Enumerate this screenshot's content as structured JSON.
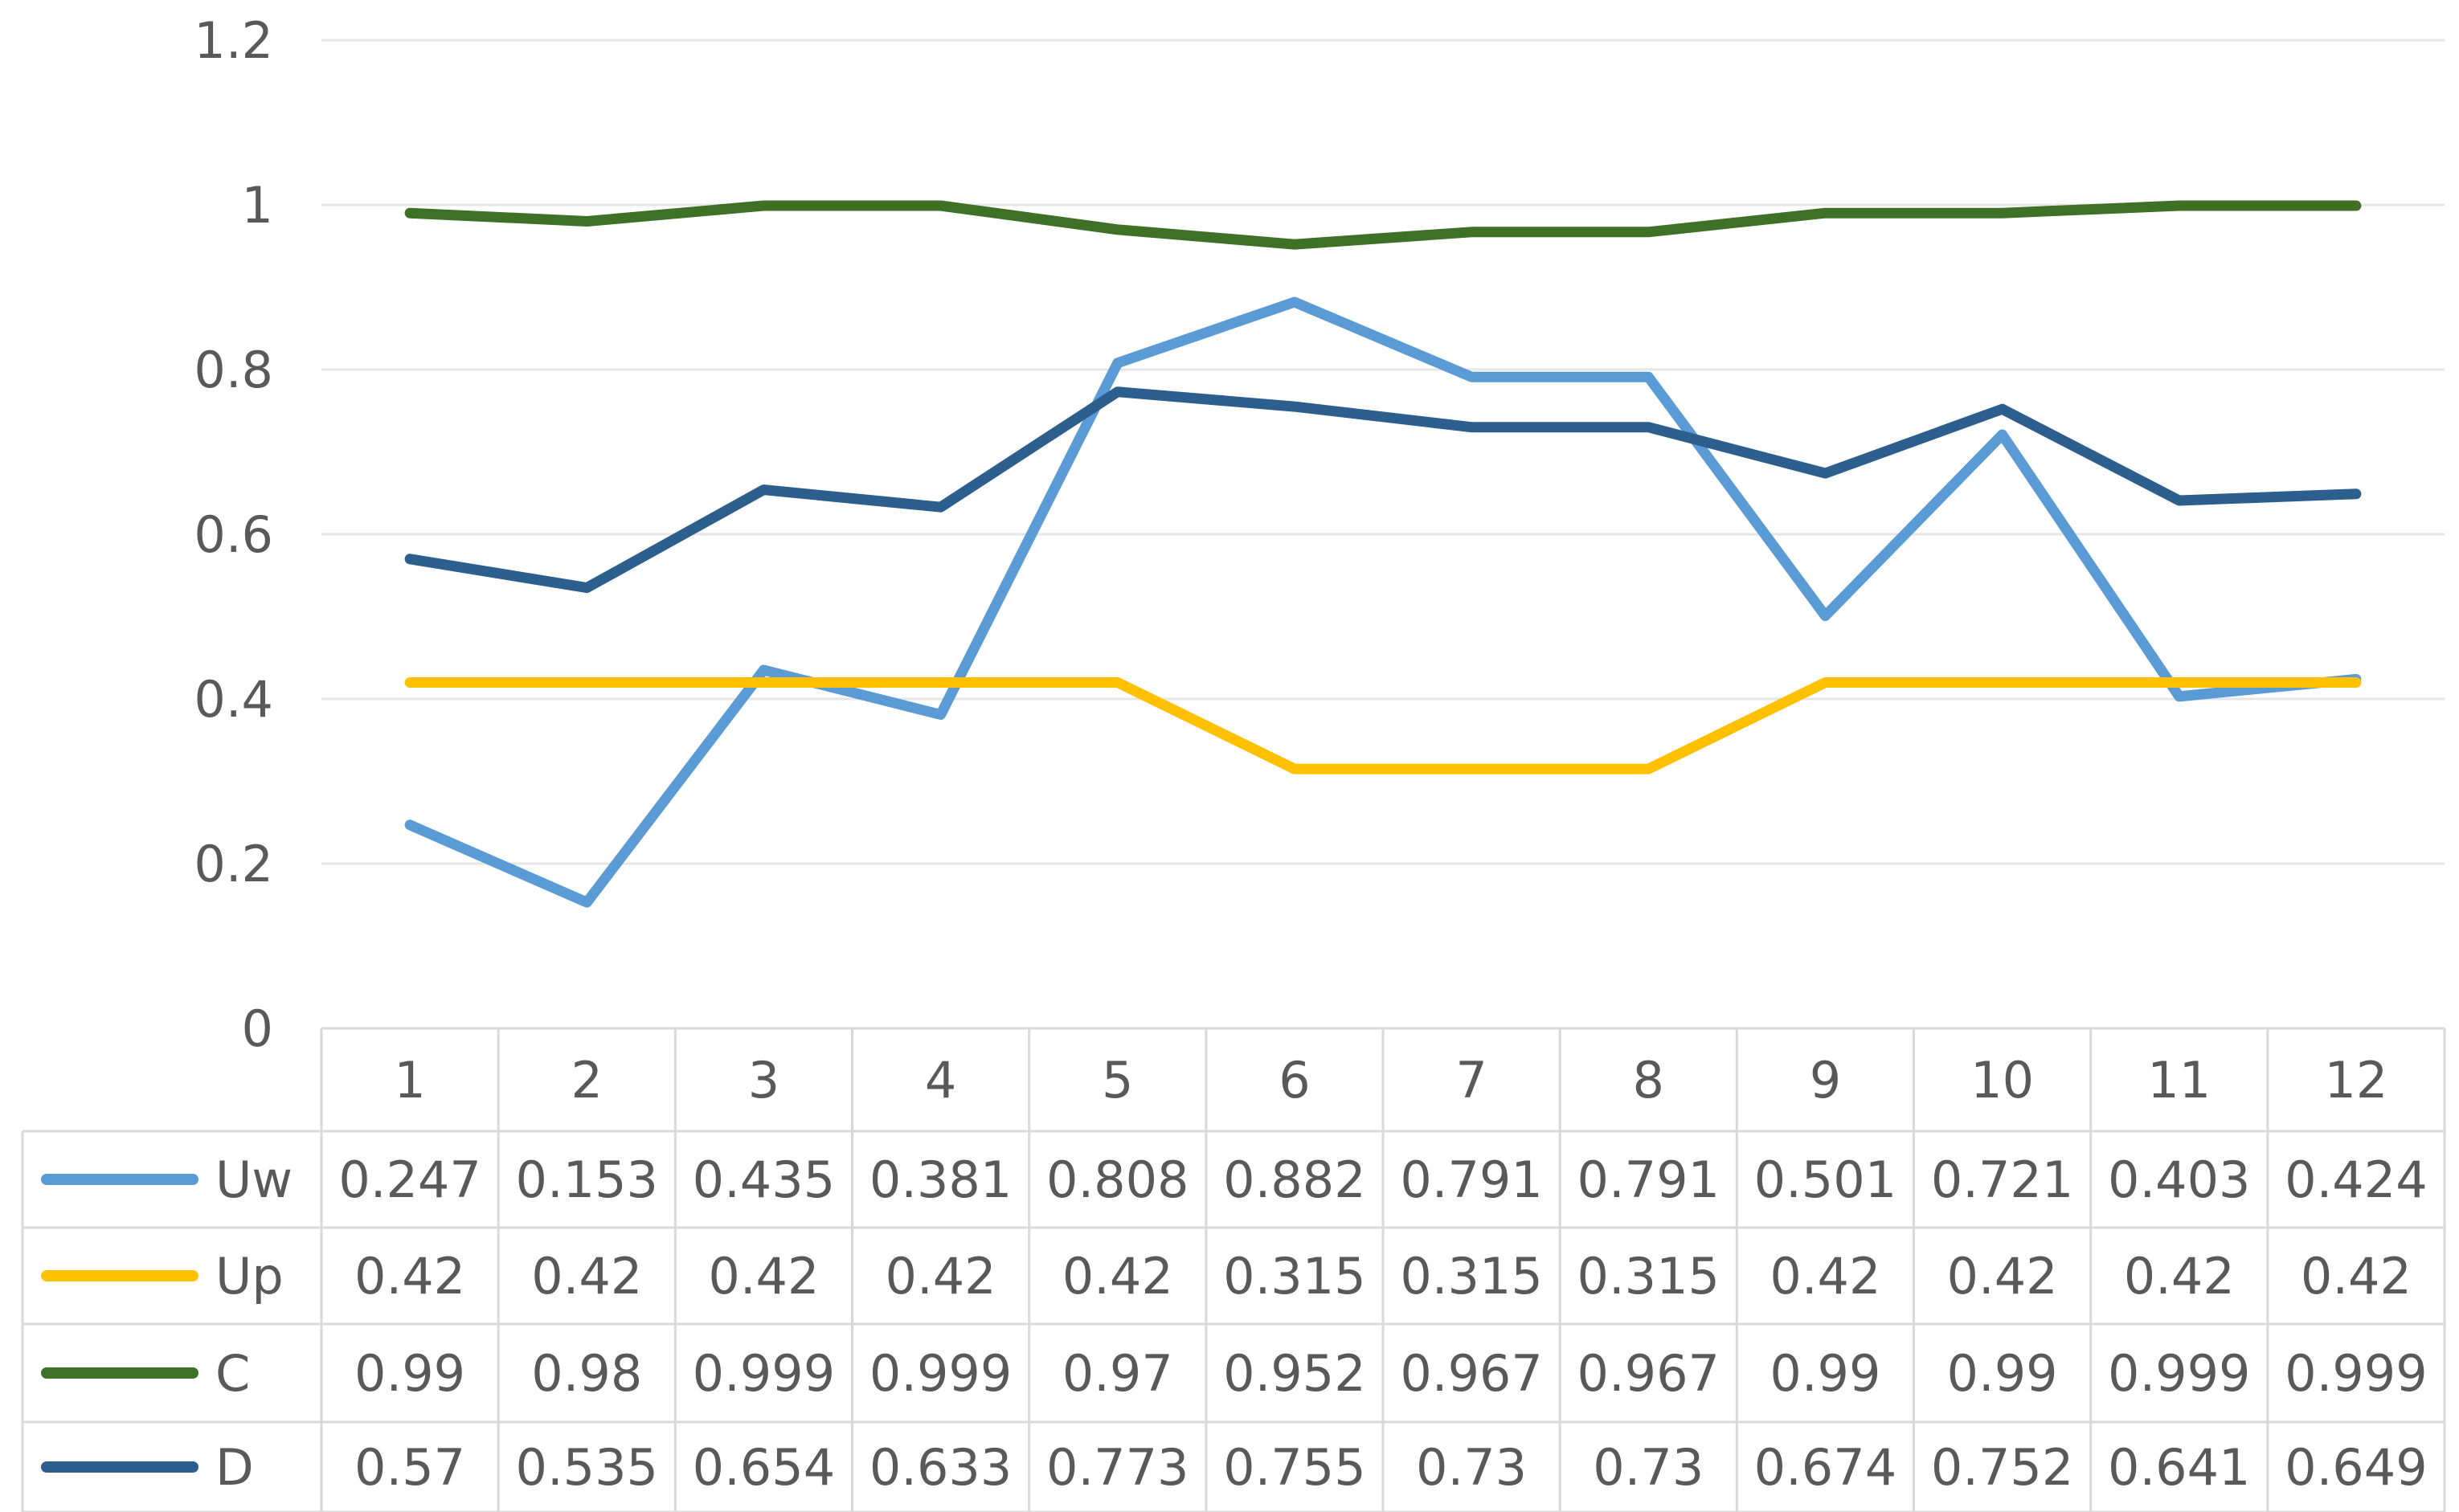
{
  "chart_data": {
    "type": "line",
    "title": "",
    "xlabel": "",
    "ylabel": "",
    "ylim": [
      0,
      1.2
    ],
    "y_ticks": [
      "0",
      "0.2",
      "0.4",
      "0.6",
      "0.8",
      "1",
      "1.2"
    ],
    "y_tick_values": [
      0,
      0.2,
      0.4,
      0.6,
      0.8,
      1.0,
      1.2
    ],
    "grid": true,
    "legend": "data-table",
    "categories": [
      "1",
      "2",
      "3",
      "4",
      "5",
      "6",
      "7",
      "8",
      "9",
      "10",
      "11",
      "12"
    ],
    "series": [
      {
        "name": "Uw",
        "color": "#5B9BD5",
        "values": [
          0.247,
          0.153,
          0.435,
          0.381,
          0.808,
          0.882,
          0.791,
          0.791,
          0.501,
          0.721,
          0.403,
          0.424
        ],
        "labels": [
          "0.247",
          "0.153",
          "0.435",
          "0.381",
          "0.808",
          "0.882",
          "0.791",
          "0.791",
          "0.501",
          "0.721",
          "0.403",
          "0.424"
        ]
      },
      {
        "name": "Up",
        "color": "#FFC000",
        "values": [
          0.42,
          0.42,
          0.42,
          0.42,
          0.42,
          0.315,
          0.315,
          0.315,
          0.42,
          0.42,
          0.42,
          0.42
        ],
        "labels": [
          "0.42",
          "0.42",
          "0.42",
          "0.42",
          "0.42",
          "0.315",
          "0.315",
          "0.315",
          "0.42",
          "0.42",
          "0.42",
          "0.42"
        ]
      },
      {
        "name": "C",
        "color": "#3E7026",
        "values": [
          0.99,
          0.98,
          0.999,
          0.999,
          0.97,
          0.952,
          0.967,
          0.967,
          0.99,
          0.99,
          0.999,
          0.999
        ],
        "labels": [
          "0.99",
          "0.98",
          "0.999",
          "0.999",
          "0.97",
          "0.952",
          "0.967",
          "0.967",
          "0.99",
          "0.99",
          "0.999",
          "0.999"
        ]
      },
      {
        "name": "D",
        "color": "#2C5F8E",
        "values": [
          0.57,
          0.535,
          0.654,
          0.633,
          0.773,
          0.755,
          0.73,
          0.73,
          0.674,
          0.752,
          0.641,
          0.649
        ],
        "labels": [
          "0.57",
          "0.535",
          "0.654",
          "0.633",
          "0.773",
          "0.755",
          "0.73",
          "0.73",
          "0.674",
          "0.752",
          "0.641",
          "0.649"
        ]
      }
    ]
  }
}
